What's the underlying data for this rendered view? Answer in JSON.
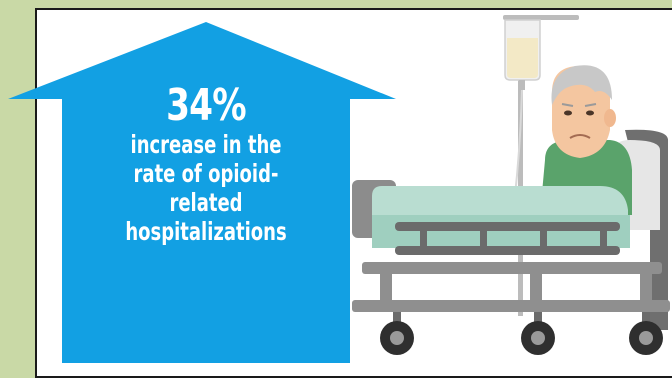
{
  "infographic": {
    "stat_value": "34%",
    "stat_lines": [
      "increase in the",
      "rate of opioid-",
      "related",
      "hospitalizations"
    ],
    "arrow_color": "#12a0e3",
    "panel_background": "#c9d9a6",
    "illustration": "patient-in-hospital-bed-illustration"
  }
}
